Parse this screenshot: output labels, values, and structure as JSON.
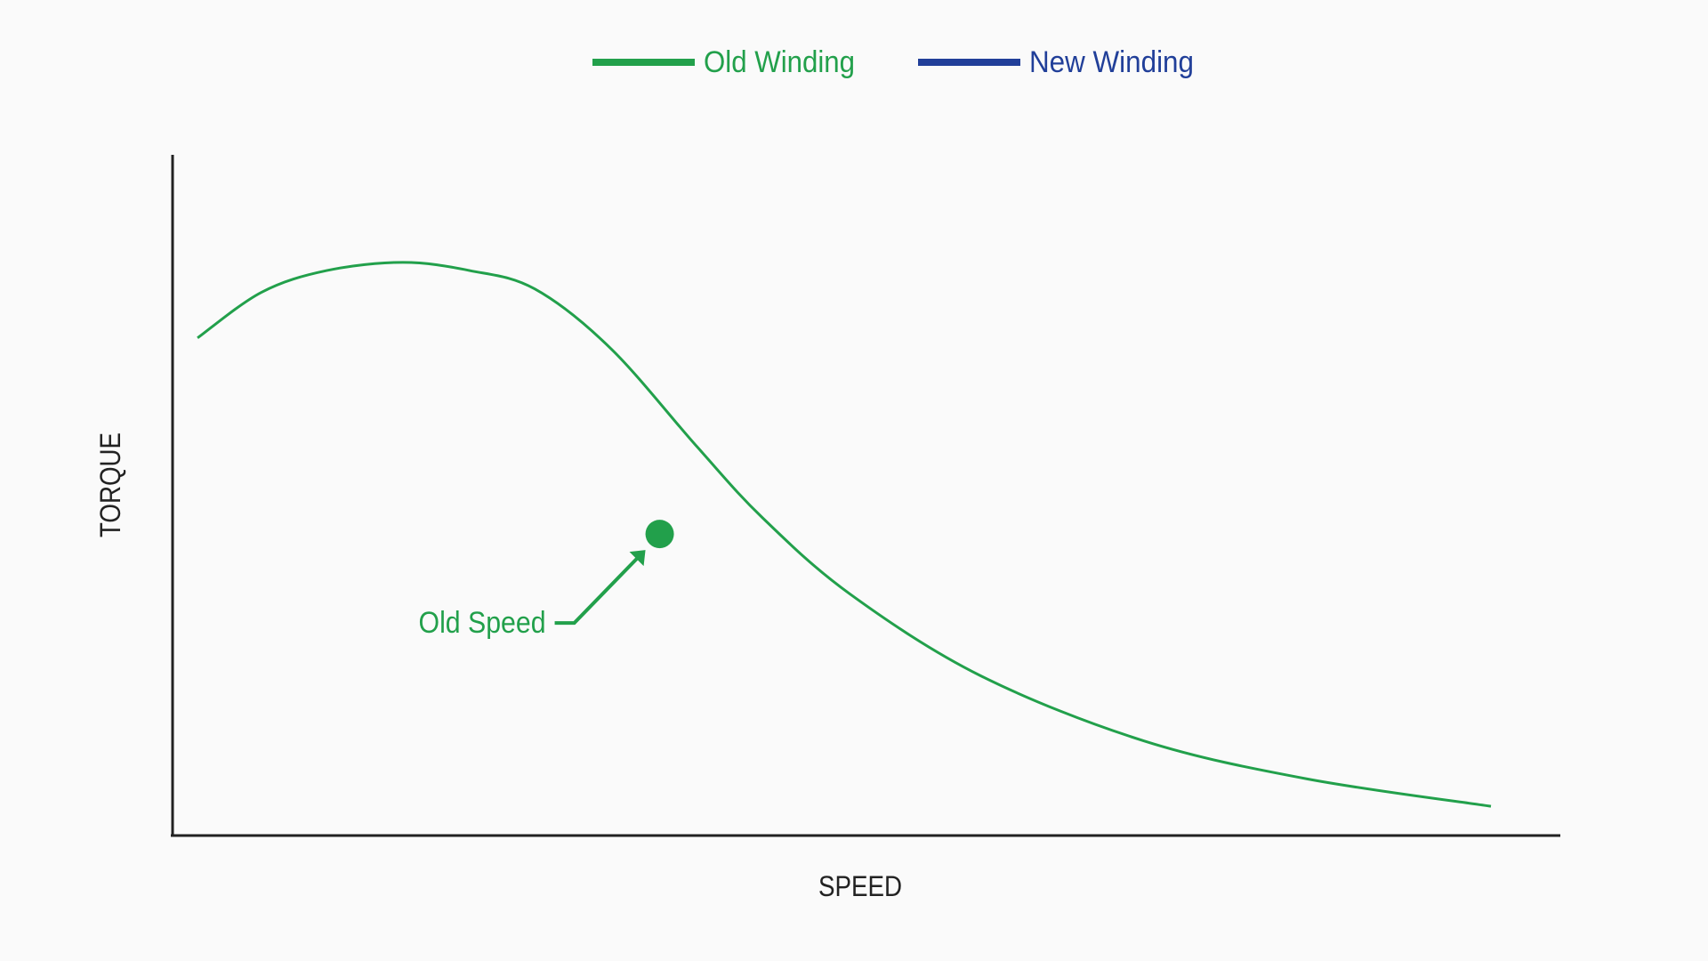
{
  "chart_data": {
    "type": "line",
    "title": "",
    "xlabel": "SPEED",
    "ylabel": "TORQUE",
    "xlim": [
      0,
      100
    ],
    "ylim": [
      0,
      100
    ],
    "grid": false,
    "ticks": false,
    "legend_placement": "top-center",
    "legend": [
      {
        "name": "Old Winding",
        "color": "#22a04b"
      },
      {
        "name": "New Winding",
        "color": "#213f99"
      }
    ],
    "series": [
      {
        "name": "Old Winding",
        "color": "#22a04b",
        "x": [
          1.8,
          6.4,
          11.1,
          16.6,
          21.4,
          26.1,
          31.6,
          37.8,
          42.5,
          48.8,
          58.2,
          70.0,
          81.8,
          95.0
        ],
        "y": [
          73.1,
          79.8,
          83.0,
          84.2,
          83.0,
          80.3,
          71.5,
          57.1,
          46.7,
          35.5,
          23.5,
          13.9,
          8.3,
          4.3
        ]
      }
    ],
    "annotations": [
      {
        "text": "Old Speed",
        "point": {
          "x": 35.1,
          "y": 44.3
        },
        "color": "#22a04b"
      }
    ],
    "axis_color": "#222222"
  }
}
